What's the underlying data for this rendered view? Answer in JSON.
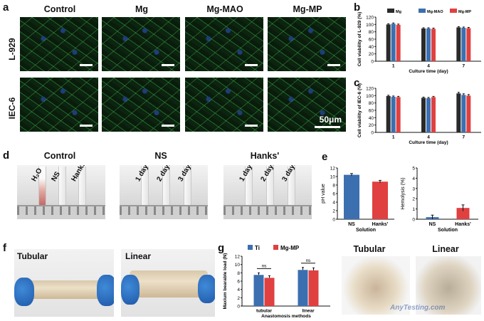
{
  "panel_a": {
    "label": "a",
    "columns": [
      "Control",
      "Mg",
      "Mg-MAO",
      "Mg-MP"
    ],
    "rows": [
      "L-929",
      "IEC-6"
    ],
    "scale_bar": "50μm"
  },
  "panel_b": {
    "label": "b",
    "chart_data": {
      "type": "bar",
      "categories": [
        "1",
        "4",
        "7"
      ],
      "series": [
        {
          "name": "Mg",
          "values": [
            100,
            89,
            92
          ],
          "errors": [
            2,
            2,
            2
          ],
          "color": "#2a2a2a"
        },
        {
          "name": "Mg-MAO",
          "values": [
            102,
            89,
            91
          ],
          "errors": [
            2,
            2,
            2
          ],
          "color": "#3c6fb0"
        },
        {
          "name": "Mg-MP",
          "values": [
            99,
            88,
            90
          ],
          "errors": [
            2,
            2,
            2
          ],
          "color": "#e04040"
        }
      ],
      "ylim": [
        0,
        120
      ],
      "yticks": [
        0,
        20,
        40,
        60,
        80,
        100,
        120
      ],
      "ylabel": "Cell viability of L-929 (%)",
      "xlabel": "Culture time (day)"
    }
  },
  "panel_c": {
    "label": "c",
    "chart_data": {
      "type": "bar",
      "categories": [
        "1",
        "4",
        "7"
      ],
      "series": [
        {
          "name": "Mg",
          "values": [
            99,
            94,
            106
          ],
          "errors": [
            2,
            2,
            3
          ],
          "color": "#2a2a2a"
        },
        {
          "name": "Mg-MAO",
          "values": [
            97,
            93,
            102
          ],
          "errors": [
            2,
            2,
            3
          ],
          "color": "#3c6fb0"
        },
        {
          "name": "Mg-MP",
          "values": [
            96,
            96,
            100
          ],
          "errors": [
            2,
            2,
            3
          ],
          "color": "#e04040"
        }
      ],
      "ylim": [
        0,
        120
      ],
      "yticks": [
        0,
        20,
        40,
        60,
        80,
        100,
        120
      ],
      "ylabel": "Cell viability of IEC-6 (%)",
      "xlabel": "Culture time (day)"
    }
  },
  "panel_d": {
    "label": "d",
    "groups": [
      {
        "title": "Control",
        "tubes": [
          "H₂O",
          "NS",
          "Hanks'"
        ]
      },
      {
        "title": "NS",
        "tubes": [
          "1 day",
          "2 days",
          "3 days"
        ]
      },
      {
        "title": "Hanks'",
        "tubes": [
          "1 day",
          "2 days",
          "3 days"
        ]
      }
    ]
  },
  "panel_e": {
    "label": "e",
    "chart_data": [
      {
        "type": "bar",
        "categories": [
          "NS",
          "Hanks'"
        ],
        "values": [
          10.4,
          8.8
        ],
        "errors": [
          0.3,
          0.3
        ],
        "colors": [
          "#3c6fb0",
          "#e04040"
        ],
        "ylim": [
          0,
          12
        ],
        "yticks": [
          0,
          2,
          4,
          6,
          8,
          10,
          12
        ],
        "ylabel": "pH value",
        "xlabel": "Solution"
      },
      {
        "type": "bar",
        "categories": [
          "NS",
          "Hanks'"
        ],
        "values": [
          0.2,
          1.1
        ],
        "errors": [
          0.2,
          0.3
        ],
        "colors": [
          "#3c6fb0",
          "#e04040"
        ],
        "ylim": [
          0,
          5
        ],
        "yticks": [
          0,
          1,
          2,
          3,
          4,
          5
        ],
        "ylabel": "Hemolysis (%)",
        "xlabel": "Solution"
      }
    ]
  },
  "panel_f": {
    "label": "f",
    "photos": [
      "Tubular",
      "Linear"
    ]
  },
  "panel_g": {
    "label": "g",
    "chart_data": {
      "type": "bar",
      "categories": [
        "tubular",
        "linear"
      ],
      "series": [
        {
          "name": "Ti",
          "values": [
            7.5,
            8.7
          ],
          "errors": [
            0.5,
            0.6
          ],
          "color": "#3c6fb0"
        },
        {
          "name": "Mg-MP",
          "values": [
            6.8,
            8.6
          ],
          "errors": [
            0.5,
            0.6
          ],
          "color": "#e04040"
        }
      ],
      "ylim": [
        0,
        12
      ],
      "yticks": [
        0,
        2,
        4,
        6,
        8,
        10,
        12
      ],
      "ylabel": "Maxium bearable load (N)",
      "xlabel": "Anastomosis methods",
      "annotations": [
        "ns",
        "ns"
      ]
    },
    "photos": [
      "Tubular",
      "Linear"
    ],
    "watermark": "AnyTesting.com"
  }
}
